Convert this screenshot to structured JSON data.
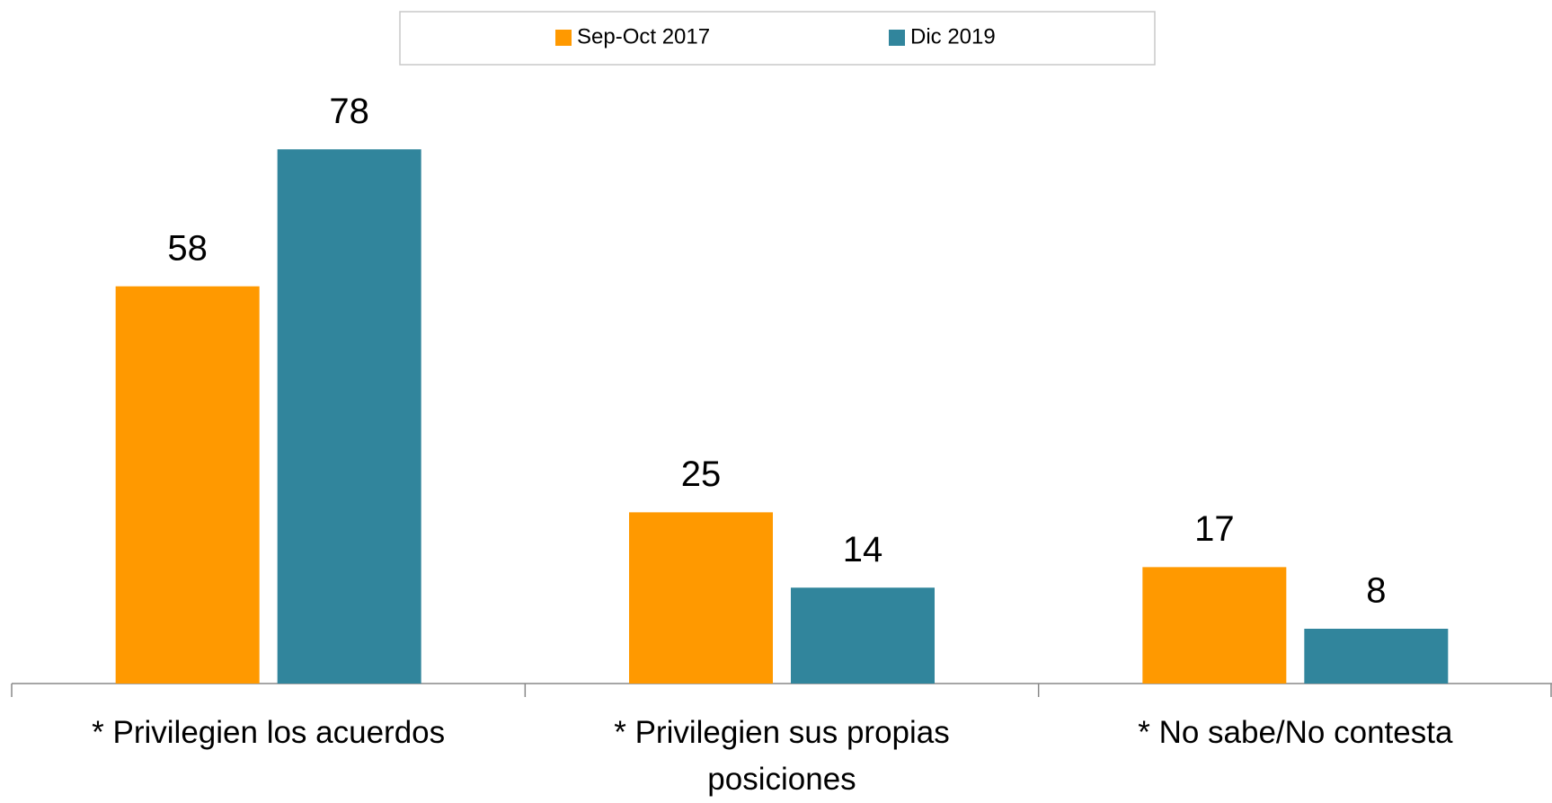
{
  "chart_data": {
    "type": "bar",
    "categories": [
      "* Privilegien los acuerdos",
      "* Privilegien sus propias posiciones",
      "* No sabe/No contesta"
    ],
    "series": [
      {
        "name": "Sep-Oct 2017",
        "color": "#ff9900",
        "values": [
          58,
          25,
          17
        ]
      },
      {
        "name": "Dic 2019",
        "color": "#31859c",
        "values": [
          78,
          14,
          8
        ]
      }
    ],
    "ylim": [
      0,
      80
    ],
    "legend": "top"
  }
}
